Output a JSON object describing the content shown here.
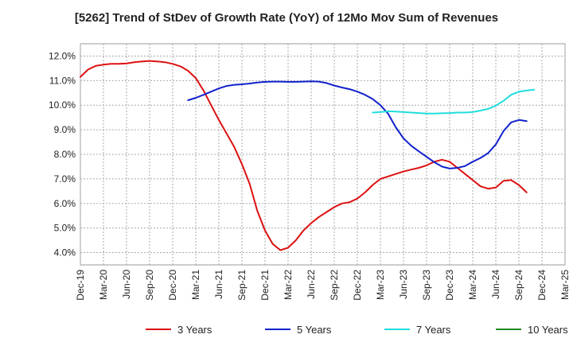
{
  "chart_data": {
    "type": "line",
    "title": "[5262]  Trend of StDev of Growth Rate (YoY) of 12Mo Mov Sum of Revenues",
    "xlabel": "",
    "ylabel": "",
    "ylim": [
      3.5,
      12.5
    ],
    "y_ticks": [
      "4.0%",
      "5.0%",
      "6.0%",
      "7.0%",
      "8.0%",
      "9.0%",
      "10.0%",
      "11.0%",
      "12.0%"
    ],
    "y_tick_values": [
      4,
      5,
      6,
      7,
      8,
      9,
      10,
      11,
      12
    ],
    "x_start": "Dec-19",
    "x_end": "Mar-25",
    "x_tick_labels": [
      "Dec-19",
      "Mar-20",
      "Jun-20",
      "Sep-20",
      "Dec-20",
      "Mar-21",
      "Jun-21",
      "Sep-21",
      "Dec-21",
      "Mar-22",
      "Jun-22",
      "Sep-22",
      "Dec-22",
      "Mar-23",
      "Jun-23",
      "Sep-23",
      "Dec-23",
      "Mar-24",
      "Jun-24",
      "Sep-24",
      "Dec-24",
      "Mar-25"
    ],
    "grid": true,
    "legend_position": "bottom",
    "series": [
      {
        "name": "3 Years",
        "color": "#dd1111",
        "start": "Dec-19",
        "values": [
          11.15,
          11.45,
          11.6,
          11.65,
          11.68,
          11.68,
          11.7,
          11.75,
          11.78,
          11.8,
          11.78,
          11.75,
          11.68,
          11.58,
          11.4,
          11.1,
          10.6,
          10.0,
          9.4,
          8.85,
          8.3,
          7.6,
          6.8,
          5.7,
          4.9,
          4.35,
          4.1,
          4.2,
          4.5,
          4.9,
          5.2,
          5.45,
          5.65,
          5.85,
          6.0,
          6.05,
          6.2,
          6.45,
          6.75,
          7.0,
          7.1,
          7.2,
          7.3,
          7.38,
          7.45,
          7.55,
          7.7,
          7.78,
          7.7,
          7.45,
          7.2,
          6.95,
          6.7,
          6.6,
          6.65,
          6.92,
          6.95,
          6.75,
          6.45
        ]
      },
      {
        "name": "5 Years",
        "color": "#1122cc",
        "start": "Feb-21",
        "values": [
          10.2,
          10.3,
          10.42,
          10.55,
          10.68,
          10.78,
          10.83,
          10.85,
          10.88,
          10.92,
          10.95,
          10.96,
          10.96,
          10.95,
          10.95,
          10.96,
          10.97,
          10.96,
          10.9,
          10.8,
          10.72,
          10.65,
          10.55,
          10.42,
          10.25,
          10.0,
          9.65,
          9.1,
          8.65,
          8.35,
          8.12,
          7.9,
          7.68,
          7.5,
          7.42,
          7.45,
          7.52,
          7.7,
          7.85,
          8.05,
          8.4,
          8.95,
          9.3,
          9.4,
          9.35
        ]
      },
      {
        "name": "7 Years",
        "color": "#22dddd",
        "start": "Feb-23",
        "values": [
          9.7,
          9.72,
          9.75,
          9.74,
          9.72,
          9.7,
          9.68,
          9.66,
          9.66,
          9.67,
          9.68,
          9.7,
          9.7,
          9.72,
          9.78,
          9.85,
          9.98,
          10.18,
          10.42,
          10.55,
          10.6,
          10.63
        ]
      },
      {
        "name": "10 Years",
        "color": "#228822",
        "start": "Dec-24",
        "values": []
      }
    ]
  }
}
